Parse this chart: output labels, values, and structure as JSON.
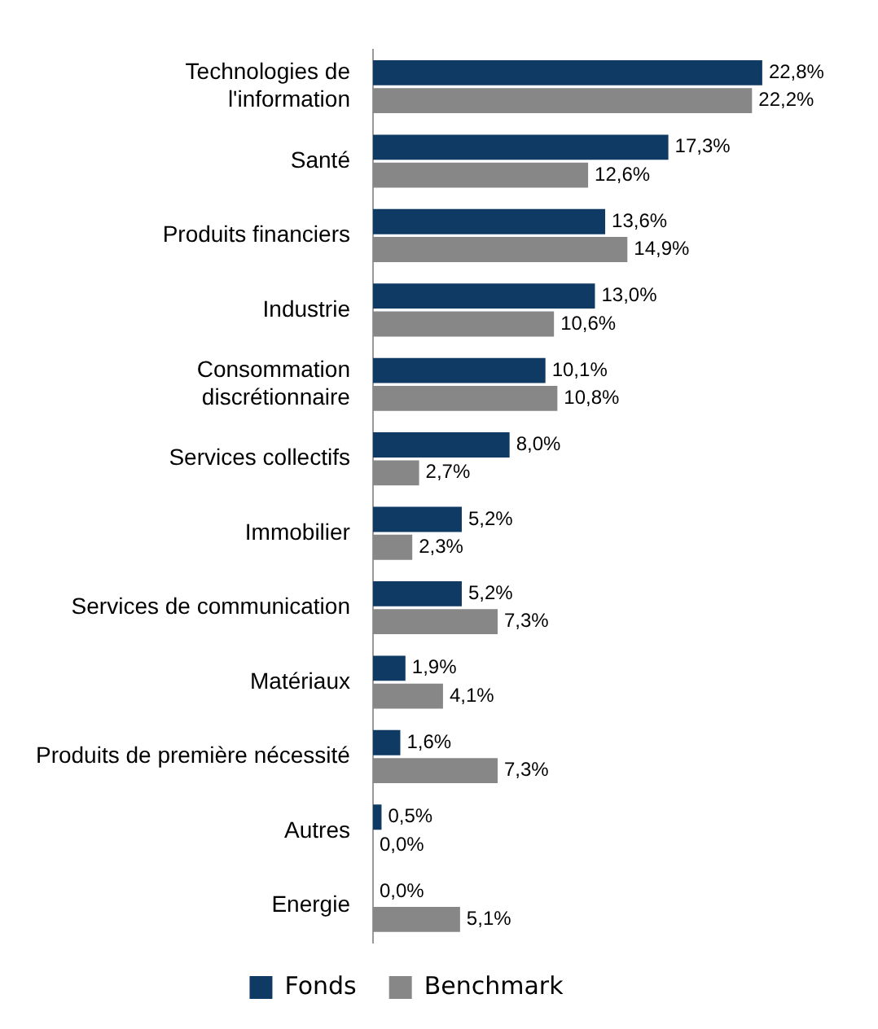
{
  "chart_data": {
    "type": "bar",
    "orientation": "horizontal",
    "categories": [
      "Technologies de\nl'information",
      "Santé",
      "Produits financiers",
      "Industrie",
      "Consommation\ndiscrétionnaire",
      "Services collectifs",
      "Immobilier",
      "Services de communication",
      "Matériaux",
      "Produits de première nécessité",
      "Autres",
      "Energie"
    ],
    "series": [
      {
        "name": "Fonds",
        "color": "#0e3a63",
        "values": [
          22.8,
          17.3,
          13.6,
          13.0,
          10.1,
          8.0,
          5.2,
          5.2,
          1.9,
          1.6,
          0.5,
          0.0
        ],
        "value_labels": [
          "22,8%",
          "17,3%",
          "13,6%",
          "13,0%",
          "10,1%",
          "8,0%",
          "5,2%",
          "5,2%",
          "1,9%",
          "1,6%",
          "0,5%",
          "0,0%"
        ]
      },
      {
        "name": "Benchmark",
        "color": "#878787",
        "values": [
          22.2,
          12.6,
          14.9,
          10.6,
          10.8,
          2.7,
          2.3,
          7.3,
          4.1,
          7.3,
          0.0,
          5.1
        ],
        "value_labels": [
          "22,2%",
          "12,6%",
          "14,9%",
          "10,6%",
          "10,8%",
          "2,7%",
          "2,3%",
          "7,3%",
          "4,1%",
          "7,3%",
          "0,0%",
          "5,1%"
        ]
      }
    ],
    "legend": "bottom",
    "grid": false
  }
}
